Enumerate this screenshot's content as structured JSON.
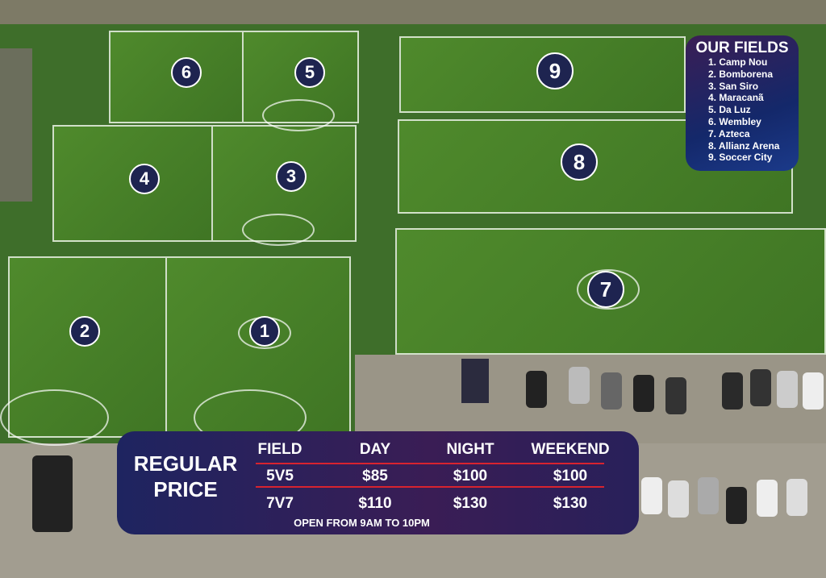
{
  "legend": {
    "title": "OUR FIELDS",
    "items": [
      "1. Camp Nou",
      "2. Bomborena",
      "3. San Siro",
      "4. Maracanã",
      "5. Da Luz",
      "6. Wembley",
      "7. Azteca",
      "8. Allianz Arena",
      "9. Soccer City"
    ]
  },
  "markers": [
    "1",
    "2",
    "3",
    "4",
    "5",
    "6",
    "7",
    "8",
    "9"
  ],
  "pricing": {
    "title_line1": "REGULAR",
    "title_line2": "PRICE",
    "headers": [
      "FIELD",
      "DAY",
      "NIGHT",
      "WEEKEND"
    ],
    "rows": [
      [
        "5V5",
        "$85",
        "$100",
        "$100"
      ],
      [
        "7V7",
        "$110",
        "$130",
        "$130"
      ]
    ],
    "hours": "OPEN FROM 9AM TO 10PM"
  },
  "colors": {
    "panel": "#1e2450",
    "accent_line": "#d8232f",
    "grass": "#4a8529"
  }
}
